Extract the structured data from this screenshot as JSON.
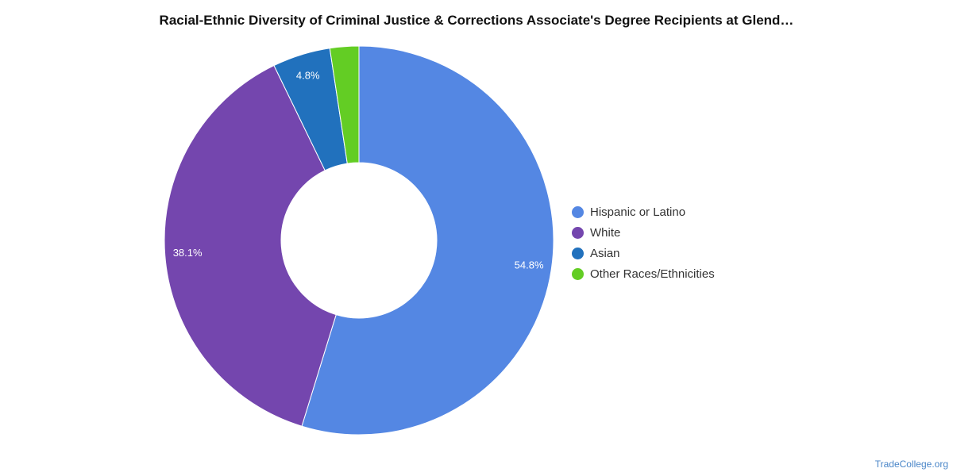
{
  "chart_data": {
    "type": "pie",
    "title": "Racial-Ethnic Diversity of Criminal Justice & Corrections Associate's Degree Recipients at Glend…",
    "categories": [
      "Hispanic or Latino",
      "White",
      "Asian",
      "Other Races/Ethnicities"
    ],
    "values": [
      54.8,
      38.1,
      4.8,
      2.4
    ],
    "data_labels": [
      "54.8%",
      "38.1%",
      "4.8%",
      ""
    ],
    "colors": [
      "#5487e3",
      "#7446ae",
      "#2171bd",
      "#63cd24"
    ],
    "donut": true,
    "legend_position": "right"
  },
  "source": "TradeCollege.org"
}
